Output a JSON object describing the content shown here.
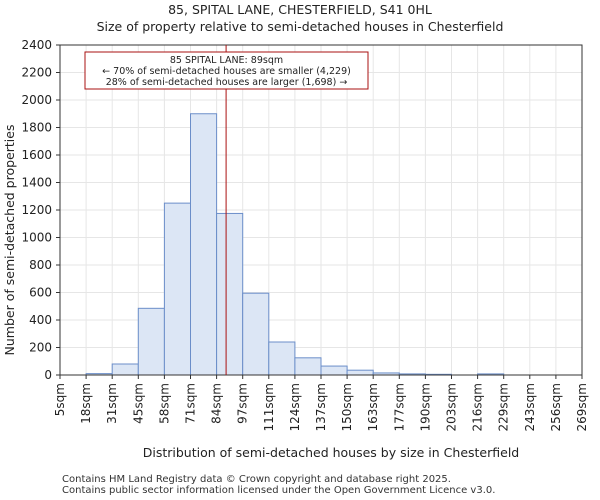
{
  "footer": {
    "line1": "Contains HM Land Registry data © Crown copyright and database right 2025.",
    "line2": "Contains public sector information licensed under the Open Government Licence v3.0."
  },
  "chart_data": {
    "type": "bar",
    "title": "85, SPITAL LANE, CHESTERFIELD, S41 0HL",
    "subtitle": "Size of property relative to semi-detached houses in Chesterfield",
    "xlabel": "Distribution of semi-detached houses by size in Chesterfield",
    "ylabel": "Number of semi-detached properties",
    "ylim": [
      0,
      2400
    ],
    "yticks": [
      0,
      200,
      400,
      600,
      800,
      1000,
      1200,
      1400,
      1600,
      1800,
      2000,
      2200,
      2400
    ],
    "categories": [
      "5sqm",
      "18sqm",
      "31sqm",
      "45sqm",
      "58sqm",
      "71sqm",
      "84sqm",
      "97sqm",
      "111sqm",
      "124sqm",
      "137sqm",
      "150sqm",
      "163sqm",
      "177sqm",
      "190sqm",
      "203sqm",
      "216sqm",
      "229sqm",
      "243sqm",
      "256sqm",
      "269sqm"
    ],
    "values": [
      0,
      10,
      80,
      485,
      1250,
      1900,
      1175,
      595,
      240,
      125,
      65,
      35,
      15,
      8,
      5,
      0,
      8,
      0,
      0,
      0,
      0
    ],
    "property_marker": {
      "value_sqm": 89,
      "label": "85 SPITAL LANE: 89sqm"
    },
    "annotation": [
      "85 SPITAL LANE: 89sqm",
      "← 70% of semi-detached houses are smaller (4,229)",
      "28% of semi-detached houses are larger (1,698) →"
    ],
    "colors": {
      "bar_fill": "#dce6f5",
      "bar_edge": "#6b8ec9",
      "marker": "#aa1111",
      "grid": "#e6e6e6"
    }
  }
}
